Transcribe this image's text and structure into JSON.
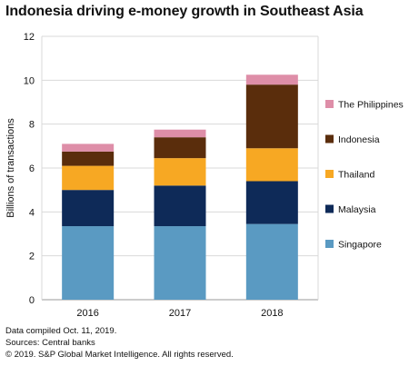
{
  "chart_data": {
    "type": "bar",
    "stacked": true,
    "title": "Indonesia driving e-money growth in Southeast Asia",
    "ylabel": "Billions of transactions",
    "xlabel": "",
    "categories": [
      "2016",
      "2017",
      "2018"
    ],
    "ylim": [
      0,
      12
    ],
    "yticks": [
      0,
      2,
      4,
      6,
      8,
      10,
      12
    ],
    "grid": true,
    "legend_position": "right",
    "series": [
      {
        "name": "Singapore",
        "color": "#5a9ac2",
        "values": [
          3.35,
          3.35,
          3.45
        ]
      },
      {
        "name": "Malaysia",
        "color": "#0e2a58",
        "values": [
          1.65,
          1.85,
          1.95
        ]
      },
      {
        "name": "Thailand",
        "color": "#f7a823",
        "values": [
          1.1,
          1.25,
          1.5
        ]
      },
      {
        "name": "Indonesia",
        "color": "#5a2d0c",
        "values": [
          0.65,
          0.95,
          2.9
        ]
      },
      {
        "name": "The Philippines",
        "color": "#de8ea8",
        "values": [
          0.35,
          0.35,
          0.45
        ]
      }
    ]
  },
  "footer": {
    "line1": "Data compiled Oct. 11, 2019.",
    "line2": "Sources: Central banks",
    "line3": "© 2019. S&P Global Market Intelligence. All rights reserved."
  }
}
